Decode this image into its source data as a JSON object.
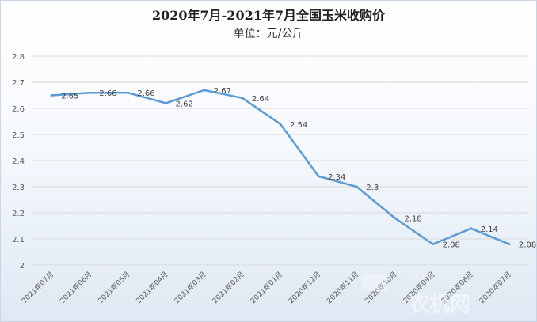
{
  "chart_data": {
    "type": "line",
    "title": "2020年7月-2021年7月全国玉米收购价",
    "subtitle": "单位：元/公斤",
    "categories": [
      "2021年07月",
      "2021年06月",
      "2021年05月",
      "2021年04月",
      "2021年03月",
      "2021年02月",
      "2021年01月",
      "2020年12月",
      "2020年11月",
      "2020年10月",
      "2020年09月",
      "2020年08月",
      "2020年07月"
    ],
    "x_tick_labels": [
      "2021年07月",
      "2021年06月",
      "2021年05月",
      "2021年04月",
      "2021年03月",
      "2021年02月",
      "2021年01月",
      "2020年12月",
      "2020年11月",
      "2020年10月",
      "2020年09月",
      "2020年08月",
      "2020年07月"
    ],
    "series": [
      {
        "values": [
          2.65,
          2.66,
          2.66,
          2.62,
          2.67,
          2.64,
          2.54,
          2.34,
          2.3,
          2.18,
          2.08,
          2.14,
          2.08
        ]
      }
    ],
    "data_labels": [
      "2.65",
      "2.66",
      "2.66",
      "2.62",
      "2.67",
      "2.64",
      "2.54",
      "2.34",
      "2.3",
      "2.18",
      "2.08",
      "2.14",
      "2.08"
    ],
    "ylim": [
      2,
      2.8
    ],
    "yticks": [
      2,
      2.1,
      2.2,
      2.3,
      2.4,
      2.5,
      2.6,
      2.7,
      2.8
    ],
    "ytick_labels": [
      "2",
      "2.1",
      "2.2",
      "2.3",
      "2.4",
      "2.5",
      "2.6",
      "2.7",
      "2.8"
    ],
    "grid": true,
    "legend": "none",
    "line_color": "#5b9bd5"
  },
  "watermark": {
    "text": "NONG.JX",
    "suffix": "农机网"
  }
}
